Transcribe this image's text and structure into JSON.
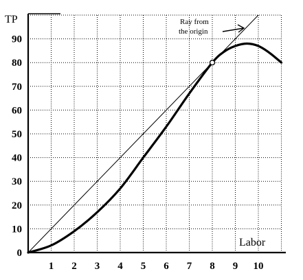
{
  "chart_data": {
    "type": "line",
    "title": "",
    "xlabel": "Labor",
    "ylabel": "TP",
    "xlim": [
      0,
      11
    ],
    "ylim": [
      0,
      100
    ],
    "grid": true,
    "x_ticks": [
      1,
      2,
      3,
      4,
      5,
      6,
      7,
      8,
      9,
      10
    ],
    "y_ticks": [
      0,
      10,
      20,
      30,
      40,
      50,
      60,
      70,
      80,
      90
    ],
    "series": [
      {
        "kind": "curve",
        "x": [
          0,
          1,
          2,
          3,
          4,
          5,
          6,
          7,
          8,
          8.5,
          9,
          9.5,
          10,
          10.5,
          11
        ],
        "y": [
          0,
          3,
          9,
          17,
          27,
          40,
          53,
          67,
          80,
          84.5,
          87,
          88,
          87,
          84,
          80
        ]
      },
      {
        "kind": "ray",
        "x": [
          0,
          10
        ],
        "y": [
          0,
          100
        ]
      }
    ],
    "highlight_point": {
      "x": 8,
      "y": 80
    },
    "annotation": {
      "lines": [
        "Ray from",
        "the origin"
      ]
    }
  }
}
